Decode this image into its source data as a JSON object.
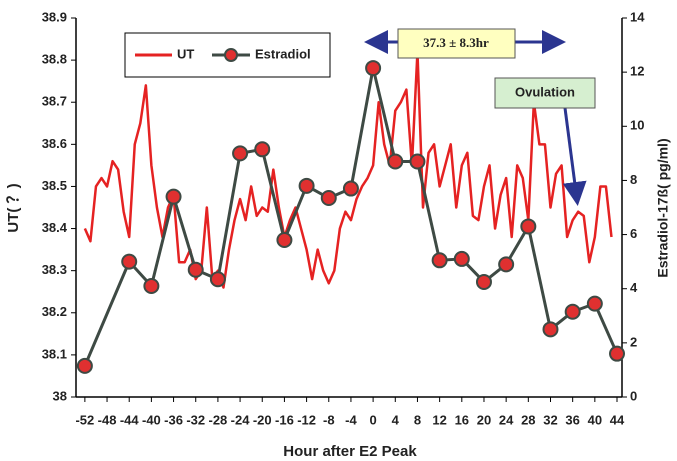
{
  "chart_data": {
    "type": "line",
    "x_label": "Hour after E2 Peak",
    "y_label": "UT( ？)",
    "y2_label": "Estradiol-17ß( pg/ml)",
    "annotations": [
      "37.3 ± 8.3hr",
      "Ovulation"
    ],
    "xlim": [
      -53.6,
      44.9
    ],
    "xticks": [
      -52,
      -48,
      -44,
      -40,
      -36,
      -32,
      -28,
      -24,
      -20,
      -16,
      -12,
      -8,
      -4,
      0,
      4,
      8,
      12,
      16,
      20,
      24,
      28,
      32,
      36,
      40,
      44
    ],
    "ylim": [
      38,
      38.9
    ],
    "yticks": [
      38,
      38.1,
      38.2,
      38.3,
      38.4,
      38.5,
      38.6,
      38.7,
      38.8,
      38.9
    ],
    "y2lim": [
      0,
      14
    ],
    "y2ticks": [
      0,
      2,
      4,
      6,
      8,
      10,
      12,
      14
    ],
    "series": [
      {
        "name": "UT",
        "color": "#e52222",
        "x": [
          -52,
          -51,
          -50,
          -49,
          -48,
          -47,
          -46,
          -45,
          -44,
          -43,
          -42,
          -41,
          -40,
          -39,
          -38,
          -37,
          -36,
          -35,
          -34,
          -33,
          -32,
          -31,
          -30,
          -29,
          -28,
          -27,
          -26,
          -25,
          -24,
          -23,
          -22,
          -21,
          -20,
          -19,
          -18,
          -17,
          -16,
          -15,
          -14,
          -13,
          -12,
          -11,
          -10,
          -9,
          -8,
          -7,
          -6,
          -5,
          -4,
          -3,
          -2,
          -1,
          0,
          1,
          2,
          3,
          4,
          5,
          6,
          7,
          8,
          9,
          10,
          11,
          12,
          13,
          14,
          15,
          16,
          17,
          18,
          19,
          20,
          21,
          22,
          23,
          24,
          25,
          26,
          27,
          28,
          29,
          30,
          31,
          32,
          33,
          34,
          35,
          36,
          37,
          38,
          39,
          40,
          41,
          42,
          43
        ],
        "values": [
          38.4,
          38.37,
          38.5,
          38.52,
          38.5,
          38.56,
          38.54,
          38.44,
          38.38,
          38.6,
          38.65,
          38.74,
          38.55,
          38.45,
          38.38,
          38.45,
          38.48,
          38.32,
          38.32,
          38.35,
          38.28,
          38.3,
          38.45,
          38.28,
          38.3,
          38.26,
          38.35,
          38.42,
          38.47,
          38.42,
          38.5,
          38.43,
          38.45,
          38.44,
          38.54,
          38.45,
          38.38,
          38.42,
          38.45,
          38.4,
          38.35,
          38.28,
          38.35,
          38.3,
          38.27,
          38.3,
          38.4,
          38.44,
          38.42,
          38.47,
          38.5,
          38.52,
          38.55,
          38.7,
          38.6,
          38.55,
          38.68,
          38.7,
          38.73,
          38.55,
          38.82,
          38.45,
          38.58,
          38.6,
          38.5,
          38.55,
          38.6,
          38.45,
          38.55,
          38.58,
          38.43,
          38.42,
          38.5,
          38.55,
          38.4,
          38.48,
          38.52,
          38.38,
          38.55,
          38.52,
          38.42,
          38.7,
          38.6,
          38.6,
          38.45,
          38.53,
          38.55,
          38.38,
          38.42,
          38.44,
          38.43,
          38.32,
          38.38,
          38.5,
          38.5,
          38.38
        ]
      },
      {
        "name": "Estradiol",
        "color": "#3e4a44",
        "marker_color": "#e03030",
        "axis": "y2",
        "x": [
          -52,
          -44,
          -40,
          -36,
          -32,
          -28,
          -24,
          -20,
          -16,
          -12,
          -8,
          -4,
          0,
          4,
          8,
          12,
          16,
          20,
          24,
          28,
          32,
          36,
          40,
          44
        ],
        "values": [
          1.15,
          5.0,
          4.1,
          7.4,
          4.7,
          4.35,
          9.0,
          9.15,
          5.8,
          7.8,
          7.35,
          7.7,
          12.15,
          8.7,
          8.7,
          5.05,
          5.1,
          4.25,
          4.9,
          6.3,
          2.5,
          3.15,
          3.45,
          1.6
        ]
      }
    ]
  }
}
